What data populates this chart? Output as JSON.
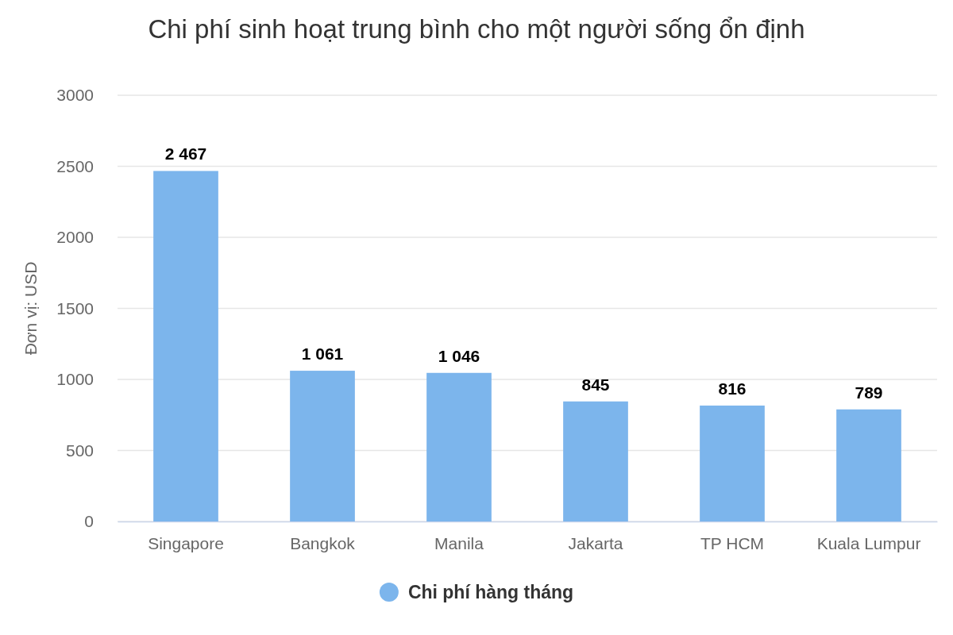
{
  "chart_data": {
    "type": "bar",
    "title": "Chi phí sinh hoạt trung bình cho một người sống ổn định",
    "ylabel": "Đơn vị: USD",
    "categories": [
      "Singapore",
      "Bangkok",
      "Manila",
      "Jakarta",
      "TP HCM",
      "Kuala Lumpur"
    ],
    "series": [
      {
        "name": "Chi phí hàng tháng",
        "color": "#7cb5ec",
        "values": [
          2467,
          1061,
          1046,
          845,
          816,
          789
        ],
        "value_labels": [
          "2 467",
          "1 061",
          "1 046",
          "845",
          "816",
          "789"
        ]
      }
    ],
    "ylim": [
      0,
      3000
    ],
    "yticks": [
      0,
      500,
      1000,
      1500,
      2000,
      2500,
      3000
    ],
    "grid": "y",
    "legend": "bottom"
  }
}
